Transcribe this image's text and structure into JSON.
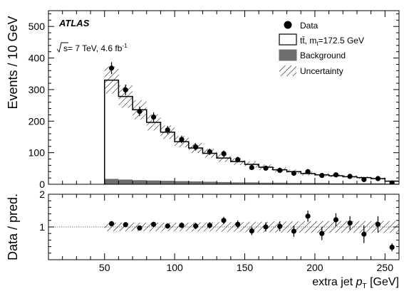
{
  "chart_data": [
    {
      "type": "bar",
      "panel": "main",
      "experiment_label": "ATLAS",
      "energy_label": "s= 7 TeV, 4.6 fb",
      "energy_sup": "-1",
      "ylabel": "Events / 10 GeV",
      "ylim": [
        0,
        550
      ],
      "yticks": [
        0,
        100,
        200,
        300,
        400,
        500
      ],
      "xlim": [
        10,
        260
      ],
      "xticks": [
        50,
        100,
        150,
        200,
        250
      ],
      "bin_edges": [
        10,
        20,
        30,
        40,
        50,
        60,
        70,
        80,
        90,
        100,
        110,
        120,
        130,
        140,
        150,
        160,
        170,
        180,
        190,
        200,
        210,
        220,
        230,
        240,
        250,
        260
      ],
      "legend": {
        "placement": "top-right",
        "data": "Data",
        "ttbar_main": "tt̄, m",
        "ttbar_sub": "t",
        "ttbar_tail": "=172.5 GeV",
        "background": "Background",
        "uncertainty": "Uncertainty"
      },
      "series": [
        {
          "name": "tt̄, m_t=172.5 GeV",
          "kind": "step",
          "values": [
            0,
            0,
            0,
            0,
            330,
            278,
            236,
            196,
            165,
            135,
            115,
            98,
            83,
            72,
            63,
            54,
            46,
            40,
            34,
            30,
            27,
            24,
            21,
            18,
            10
          ]
        },
        {
          "name": "Background",
          "kind": "filled",
          "values": [
            0,
            0,
            0,
            0,
            17,
            15,
            13,
            12,
            11,
            10,
            9,
            8,
            7,
            6,
            6,
            5,
            5,
            4,
            4,
            4,
            3,
            3,
            3,
            3,
            2
          ]
        },
        {
          "name": "Uncertainty",
          "kind": "band",
          "fraction": [
            0,
            0,
            0,
            0,
            0.13,
            0.13,
            0.13,
            0.13,
            0.13,
            0.13,
            0.14,
            0.14,
            0.15,
            0.15,
            0.16,
            0.16,
            0.17,
            0.17,
            0.18,
            0.18,
            0.18,
            0.18,
            0.18,
            0.18,
            0.18
          ]
        },
        {
          "name": "Data",
          "kind": "points",
          "x": [
            55,
            65,
            75,
            85,
            95,
            105,
            115,
            125,
            135,
            145,
            155,
            165,
            175,
            185,
            195,
            205,
            215,
            225,
            235,
            245,
            255
          ],
          "y": [
            368,
            299,
            231,
            213,
            172,
            142,
            118,
            103,
            97,
            78,
            53,
            51,
            44,
            35,
            40,
            28,
            30,
            25,
            15,
            18,
            4
          ],
          "err": [
            19,
            17,
            15,
            15,
            13,
            12,
            11,
            10,
            10,
            9,
            7,
            7,
            7,
            6,
            6,
            5,
            5,
            5,
            4,
            4,
            2
          ]
        }
      ]
    },
    {
      "type": "scatter",
      "panel": "ratio",
      "ylabel": "Data / pred.",
      "xlabel": "extra jet",
      "xlabel_var": "p",
      "xlabel_sub": "T",
      "xlabel_unit": "[GeV]",
      "ylim": [
        0,
        2
      ],
      "yticks": [
        1,
        2
      ],
      "xlim": [
        10,
        260
      ],
      "xticks": [
        50,
        100,
        150,
        200,
        250
      ],
      "reference_line": 1,
      "band_fraction": [
        0.13,
        0.13,
        0.13,
        0.13,
        0.13,
        0.13,
        0.14,
        0.14,
        0.15,
        0.15,
        0.16,
        0.16,
        0.17,
        0.17,
        0.18,
        0.18,
        0.18,
        0.18,
        0.18,
        0.18,
        0.18
      ],
      "x": [
        55,
        65,
        75,
        85,
        95,
        105,
        115,
        125,
        135,
        145,
        155,
        165,
        175,
        185,
        195,
        205,
        215,
        225,
        235,
        245,
        255
      ],
      "y": [
        1.1,
        1.07,
        0.97,
        1.08,
        1.03,
        1.05,
        1.03,
        1.05,
        1.2,
        1.08,
        0.88,
        1.0,
        1.02,
        0.87,
        1.33,
        0.8,
        1.22,
        1.12,
        0.78,
        1.08,
        0.38
      ],
      "err": [
        0.06,
        0.07,
        0.07,
        0.08,
        0.08,
        0.09,
        0.1,
        0.1,
        0.11,
        0.12,
        0.13,
        0.14,
        0.15,
        0.17,
        0.17,
        0.2,
        0.2,
        0.21,
        0.27,
        0.25,
        0.12
      ]
    }
  ]
}
